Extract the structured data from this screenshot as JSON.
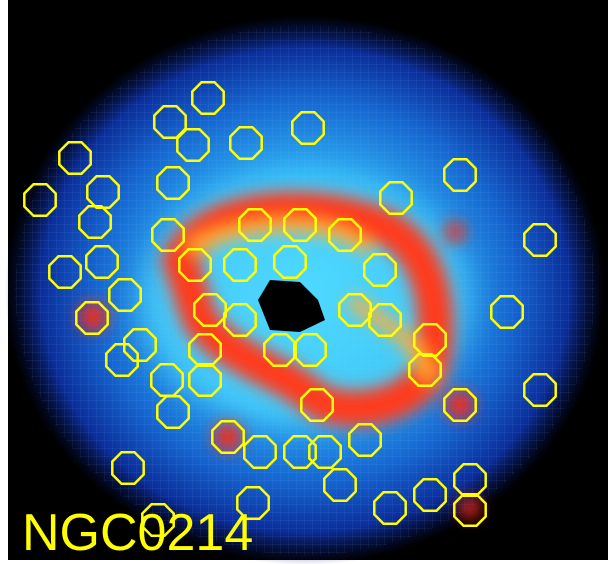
{
  "label": "NGC0214"
}
